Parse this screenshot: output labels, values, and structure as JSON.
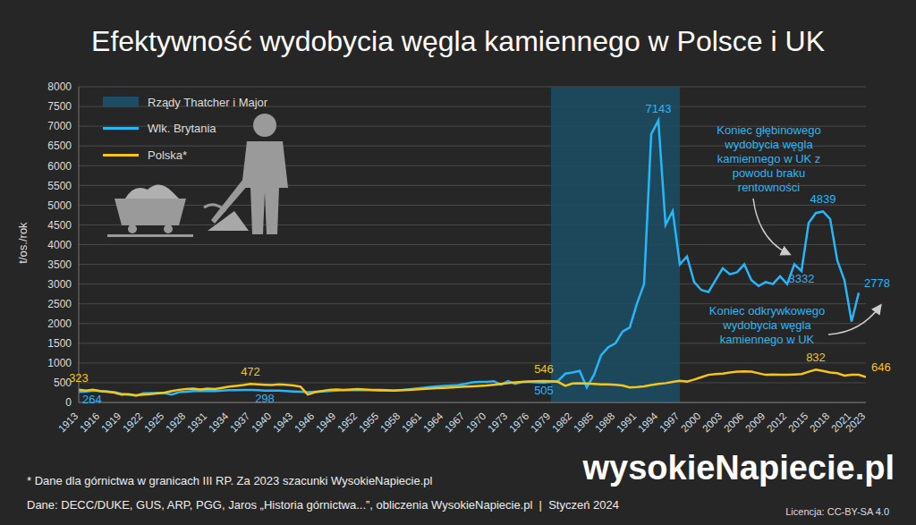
{
  "chart_data": {
    "type": "line",
    "title": "Efektywność wydobycia węgla kamiennego w Polsce i UK",
    "y_label": "t/os./rok",
    "x": [
      1913,
      1914,
      1915,
      1916,
      1917,
      1918,
      1919,
      1920,
      1921,
      1922,
      1923,
      1924,
      1925,
      1926,
      1927,
      1928,
      1929,
      1930,
      1931,
      1932,
      1933,
      1934,
      1935,
      1936,
      1937,
      1938,
      1939,
      1940,
      1941,
      1942,
      1943,
      1944,
      1945,
      1946,
      1947,
      1948,
      1949,
      1950,
      1951,
      1952,
      1953,
      1954,
      1955,
      1956,
      1957,
      1958,
      1959,
      1960,
      1961,
      1962,
      1963,
      1964,
      1965,
      1966,
      1967,
      1968,
      1969,
      1970,
      1971,
      1972,
      1973,
      1974,
      1975,
      1976,
      1977,
      1978,
      1979,
      1980,
      1981,
      1982,
      1983,
      1984,
      1985,
      1986,
      1987,
      1988,
      1989,
      1990,
      1991,
      1992,
      1993,
      1994,
      1995,
      1996,
      1997,
      1998,
      1999,
      2000,
      2001,
      2002,
      2003,
      2004,
      2005,
      2006,
      2007,
      2008,
      2009,
      2010,
      2011,
      2012,
      2013,
      2014,
      2015,
      2016,
      2017,
      2018,
      2019,
      2020,
      2021,
      2022,
      2023
    ],
    "series": [
      {
        "name": "Wlk. Brytania",
        "color": "#29b6f6",
        "labeled_x": [
          1913,
          1939,
          1978,
          1994,
          2014,
          2017,
          2022
        ],
        "values": [
          264,
          280,
          300,
          290,
          280,
          260,
          220,
          200,
          170,
          230,
          240,
          240,
          240,
          200,
          260,
          270,
          290,
          290,
          290,
          290,
          300,
          310,
          310,
          320,
          320,
          310,
          298,
          300,
          300,
          290,
          280,
          270,
          260,
          270,
          280,
          290,
          300,
          310,
          310,
          310,
          310,
          310,
          300,
          300,
          300,
          310,
          330,
          350,
          370,
          390,
          410,
          420,
          430,
          440,
          470,
          510,
          520,
          520,
          540,
          450,
          540,
          470,
          520,
          520,
          510,
          505,
          520,
          550,
          730,
          760,
          800,
          380,
          700,
          1200,
          1400,
          1500,
          1800,
          1900,
          2500,
          3000,
          6800,
          7143,
          4500,
          4850,
          3500,
          3700,
          3050,
          2850,
          2800,
          3100,
          3400,
          3250,
          3300,
          3500,
          3100,
          2950,
          3050,
          3000,
          3200,
          3000,
          3500,
          3332,
          4550,
          4800,
          4839,
          4650,
          3600,
          3100,
          2050,
          2778,
          null
        ]
      },
      {
        "name": "Polska*",
        "color": "#f5c518",
        "labeled_x": [
          1913,
          1937,
          1978,
          2016,
          2023
        ],
        "values": [
          323,
          300,
          320,
          290,
          270,
          250,
          200,
          210,
          180,
          200,
          210,
          230,
          250,
          290,
          320,
          340,
          350,
          330,
          350,
          340,
          370,
          400,
          420,
          440,
          472,
          460,
          450,
          440,
          460,
          450,
          430,
          400,
          200,
          260,
          290,
          320,
          330,
          320,
          330,
          340,
          330,
          320,
          320,
          310,
          300,
          310,
          320,
          330,
          340,
          350,
          360,
          370,
          380,
          390,
          400,
          410,
          420,
          430,
          450,
          470,
          490,
          510,
          520,
          530,
          540,
          546,
          540,
          520,
          420,
          480,
          490,
          480,
          470,
          460,
          460,
          450,
          430,
          380,
          390,
          410,
          440,
          470,
          490,
          520,
          550,
          530,
          580,
          640,
          700,
          720,
          730,
          760,
          780,
          790,
          780,
          740,
          700,
          710,
          700,
          700,
          710,
          720,
          780,
          832,
          800,
          760,
          740,
          680,
          700,
          700,
          646
        ]
      }
    ],
    "shaded": {
      "label": "Rządy Thatcher i Major",
      "x": [
        1979,
        1997
      ],
      "color": "#1d4d62"
    },
    "xlim": [
      1913,
      2023
    ],
    "xticks": [
      1913,
      1916,
      1919,
      1922,
      1925,
      1928,
      1931,
      1934,
      1937,
      1940,
      1943,
      1946,
      1949,
      1952,
      1955,
      1958,
      1961,
      1964,
      1967,
      1970,
      1973,
      1976,
      1979,
      1982,
      1985,
      1988,
      1991,
      1994,
      1997,
      2000,
      2003,
      2006,
      2009,
      2012,
      2015,
      2018,
      2021,
      2023
    ],
    "ylim": [
      0,
      8000
    ],
    "yticks": [
      0,
      500,
      1000,
      1500,
      2000,
      2500,
      3000,
      3500,
      4000,
      4500,
      5000,
      5500,
      6000,
      6500,
      7000,
      7500,
      8000
    ],
    "grid": true,
    "legend": "top-left",
    "annotations": [
      {
        "text": "Koniec głębinowego wydobycia węgla kamiennego w UK z powodu braku rentowności"
      },
      {
        "text": "Koniec odkrywkowego wydobycia węgla kamiennego w UK"
      }
    ],
    "footnote": "* Dane dla górnictwa w granicach III RP. Za 2023 szacunki WysokieNapiecie.pl",
    "source": "Dane: DECC/DUKE, GUS, ARP, PGG, Jaros „Historia górnictwa...”, obliczenia WysokieNapiecie.pl  |  Styczeń 2024",
    "logo": "wysokieNapiecie.pl",
    "license": "Licencja: CC-BY-SA 4.0"
  }
}
